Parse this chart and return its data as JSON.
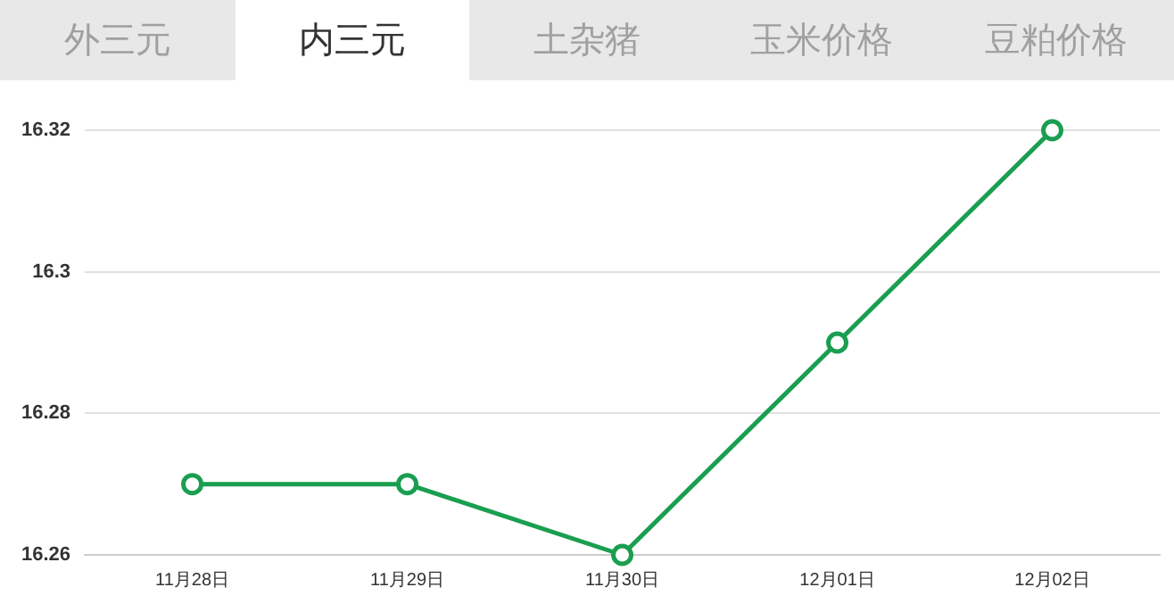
{
  "chart_data": {
    "type": "line",
    "title": "内三元",
    "annotations": [
      "外三元",
      "土杂猪",
      "玉米价格",
      "豆粕价格"
    ],
    "categories": [
      "11月28日",
      "11月29日",
      "11月30日",
      "12月01日",
      "12月02日"
    ],
    "values": [
      16.27,
      16.27,
      16.26,
      16.29,
      16.32
    ],
    "color": "#1a9e50",
    "ylim": [
      16.26,
      16.32
    ],
    "yticks": [
      16.26,
      16.28,
      16.3,
      16.32
    ],
    "grid": "y",
    "marker": "circle",
    "line_style": "solid",
    "legend": false
  }
}
